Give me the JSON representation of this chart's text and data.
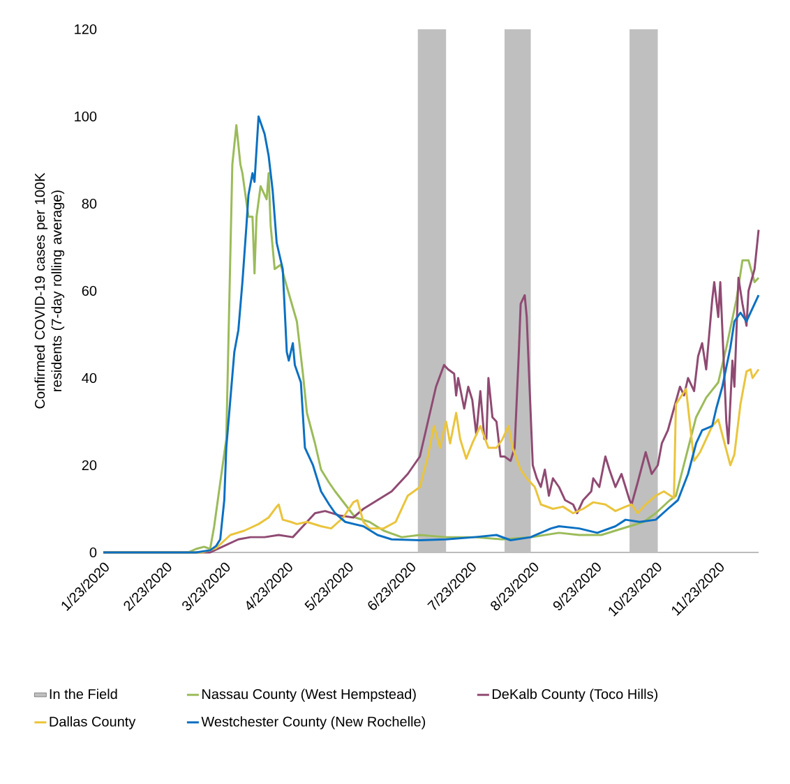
{
  "chart_data": {
    "type": "line",
    "ylabel": "Confirmed COVID-19 cases per 100K residents (7-day rolling average)",
    "xlim": [
      "2020-01-23",
      "2020-12-13"
    ],
    "xticks": [
      {
        "value": "2020-01-23",
        "label": "1/23/2020"
      },
      {
        "value": "2020-02-23",
        "label": "2/23/2020"
      },
      {
        "value": "2020-03-23",
        "label": "3/23/2020"
      },
      {
        "value": "2020-04-23",
        "label": "4/23/2020"
      },
      {
        "value": "2020-05-23",
        "label": "5/23/2020"
      },
      {
        "value": "2020-06-23",
        "label": "6/23/2020"
      },
      {
        "value": "2020-07-23",
        "label": "7/23/2020"
      },
      {
        "value": "2020-08-23",
        "label": "8/23/2020"
      },
      {
        "value": "2020-09-23",
        "label": "9/23/2020"
      },
      {
        "value": "2020-10-23",
        "label": "10/23/2020"
      },
      {
        "value": "2020-11-23",
        "label": "11/23/2020"
      }
    ],
    "ylim": [
      0,
      120
    ],
    "yticks": [
      0,
      20,
      40,
      60,
      80,
      100,
      120
    ],
    "legend": "bottom",
    "bands": [
      {
        "axis": "x",
        "from": "2020-06-27",
        "to": "2020-07-11",
        "label": "In the Field",
        "color": "#bfbfbf"
      },
      {
        "axis": "x",
        "from": "2020-08-09",
        "to": "2020-08-22",
        "color": "#bfbfbf"
      },
      {
        "axis": "x",
        "from": "2020-10-10",
        "to": "2020-10-24",
        "color": "#bfbfbf"
      }
    ],
    "series": [
      {
        "name": "Nassau County (West Hempstead)",
        "color": "#9bbb59",
        "x": [
          "2020-01-23",
          "2020-03-05",
          "2020-03-09",
          "2020-03-13",
          "2020-03-16",
          "2020-03-18",
          "2020-03-21",
          "2020-03-24",
          "2020-03-27",
          "2020-03-29",
          "2020-03-31",
          "2020-04-01",
          "2020-04-04",
          "2020-04-06",
          "2020-04-07",
          "2020-04-08",
          "2020-04-10",
          "2020-04-13",
          "2020-04-14",
          "2020-04-15",
          "2020-04-17",
          "2020-04-20",
          "2020-04-23",
          "2020-04-28",
          "2020-05-01",
          "2020-05-03",
          "2020-05-07",
          "2020-05-10",
          "2020-05-14",
          "2020-05-17",
          "2020-05-22",
          "2020-05-27",
          "2020-06-03",
          "2020-06-10",
          "2020-06-19",
          "2020-06-28",
          "2020-07-11",
          "2020-07-25",
          "2020-08-08",
          "2020-08-22",
          "2020-09-05",
          "2020-09-15",
          "2020-09-26",
          "2020-10-03",
          "2020-10-10",
          "2020-10-17",
          "2020-10-23",
          "2020-10-30",
          "2020-11-02",
          "2020-11-12",
          "2020-11-17",
          "2020-11-23",
          "2020-11-27",
          "2020-12-02",
          "2020-12-05",
          "2020-12-08",
          "2020-12-11",
          "2020-12-13"
        ],
        "values": [
          0,
          0,
          0.8,
          1.3,
          0.8,
          6,
          16,
          26,
          89,
          98,
          89,
          87,
          77,
          77,
          64,
          77,
          84,
          81,
          87,
          75,
          65,
          66,
          61,
          53,
          41,
          32,
          25,
          19,
          16,
          14,
          11,
          8,
          7,
          5,
          3.5,
          4,
          3.5,
          3.5,
          3,
          3.5,
          4.5,
          4,
          4,
          5,
          6,
          7,
          9,
          12,
          13,
          31,
          35.5,
          39,
          47,
          58,
          67,
          67,
          62,
          63
        ]
      },
      {
        "name": "DeKalb County (Toco Hills)",
        "color": "#8f4a72",
        "x": [
          "2020-01-23",
          "2020-03-16",
          "2020-03-23",
          "2020-03-30",
          "2020-04-05",
          "2020-04-12",
          "2020-04-19",
          "2020-04-26",
          "2020-05-01",
          "2020-05-07",
          "2020-05-12",
          "2020-05-19",
          "2020-05-26",
          "2020-05-31",
          "2020-06-07",
          "2020-06-14",
          "2020-06-22",
          "2020-06-28",
          "2020-07-02",
          "2020-07-06",
          "2020-07-10",
          "2020-07-12",
          "2020-07-15",
          "2020-07-16",
          "2020-07-17",
          "2020-07-20",
          "2020-07-22",
          "2020-07-24",
          "2020-07-26",
          "2020-07-28",
          "2020-07-30",
          "2020-07-31",
          "2020-08-01",
          "2020-08-03",
          "2020-08-05",
          "2020-08-07",
          "2020-08-09",
          "2020-08-12",
          "2020-08-14",
          "2020-08-16",
          "2020-08-17",
          "2020-08-19",
          "2020-08-20",
          "2020-08-23",
          "2020-08-25",
          "2020-08-27",
          "2020-08-29",
          "2020-08-31",
          "2020-09-02",
          "2020-09-05",
          "2020-09-08",
          "2020-09-12",
          "2020-09-14",
          "2020-09-17",
          "2020-09-21",
          "2020-09-22",
          "2020-09-25",
          "2020-09-28",
          "2020-09-30",
          "2020-10-03",
          "2020-10-06",
          "2020-10-10",
          "2020-10-11",
          "2020-10-14",
          "2020-10-18",
          "2020-10-21",
          "2020-10-24",
          "2020-10-26",
          "2020-10-29",
          "2020-11-01",
          "2020-11-04",
          "2020-11-06",
          "2020-11-08",
          "2020-11-11",
          "2020-11-13",
          "2020-11-15",
          "2020-11-17",
          "2020-11-20",
          "2020-11-21",
          "2020-11-23",
          "2020-11-24",
          "2020-11-27",
          "2020-11-28",
          "2020-11-30",
          "2020-12-01",
          "2020-12-03",
          "2020-12-05",
          "2020-12-07",
          "2020-12-08",
          "2020-12-11",
          "2020-12-13"
        ],
        "values": [
          0,
          0,
          1.5,
          3,
          3.5,
          3.5,
          4,
          3.5,
          6,
          9,
          9.5,
          8.5,
          8,
          10,
          12,
          14,
          18,
          22,
          30,
          38,
          43,
          42,
          41,
          36,
          40,
          33,
          38,
          35,
          27,
          37,
          26,
          26,
          40,
          31,
          30,
          22,
          22,
          21,
          24,
          45,
          57,
          59,
          54,
          20,
          17,
          15,
          19,
          13,
          17,
          15,
          12,
          11,
          9,
          12,
          14,
          17,
          15,
          22,
          19,
          15,
          18,
          12,
          11,
          16,
          23,
          18,
          20,
          25,
          28,
          33,
          38,
          36,
          40,
          37,
          45,
          48,
          42,
          58,
          62,
          54,
          62,
          30,
          25,
          44,
          38,
          63,
          57,
          52,
          60,
          65,
          74
        ]
      },
      {
        "name": "Dallas County",
        "color": "#eac43c",
        "x": [
          "2020-01-23",
          "2020-03-12",
          "2020-03-19",
          "2020-03-26",
          "2020-04-02",
          "2020-04-09",
          "2020-04-14",
          "2020-04-18",
          "2020-04-19",
          "2020-04-21",
          "2020-04-25",
          "2020-04-28",
          "2020-05-03",
          "2020-05-10",
          "2020-05-15",
          "2020-05-21",
          "2020-05-26",
          "2020-05-28",
          "2020-05-31",
          "2020-06-03",
          "2020-06-10",
          "2020-06-16",
          "2020-06-22",
          "2020-06-28",
          "2020-07-02",
          "2020-07-05",
          "2020-07-08",
          "2020-07-11",
          "2020-07-13",
          "2020-07-16",
          "2020-07-18",
          "2020-07-21",
          "2020-07-24",
          "2020-07-28",
          "2020-08-01",
          "2020-08-05",
          "2020-08-08",
          "2020-08-11",
          "2020-08-13",
          "2020-08-17",
          "2020-08-20",
          "2020-08-24",
          "2020-08-27",
          "2020-09-02",
          "2020-09-07",
          "2020-09-12",
          "2020-09-17",
          "2020-09-22",
          "2020-09-28",
          "2020-10-03",
          "2020-10-08",
          "2020-10-11",
          "2020-10-14",
          "2020-10-18",
          "2020-10-23",
          "2020-10-27",
          "2020-11-01",
          "2020-11-02",
          "2020-11-07",
          "2020-11-11",
          "2020-11-14",
          "2020-11-20",
          "2020-11-23",
          "2020-11-25",
          "2020-11-29",
          "2020-12-01",
          "2020-12-04",
          "2020-12-07",
          "2020-12-09",
          "2020-12-10",
          "2020-12-13"
        ],
        "values": [
          0,
          0,
          1,
          4,
          5,
          6.5,
          8,
          10.5,
          11,
          7.5,
          7,
          6.5,
          7,
          6,
          5.5,
          8,
          11.5,
          12,
          7,
          5.5,
          5.5,
          7,
          13,
          15,
          22,
          29,
          24,
          30,
          25,
          32,
          26,
          21.5,
          25,
          29,
          24,
          24,
          26,
          29,
          24,
          19,
          17,
          15,
          11,
          10,
          10.5,
          9,
          10,
          11.5,
          11,
          9.5,
          10.5,
          11,
          9,
          11,
          13,
          14,
          12.5,
          34,
          37.5,
          21,
          23,
          29,
          30.5,
          27,
          20,
          22.5,
          34,
          41.5,
          42,
          40,
          42
        ]
      },
      {
        "name": "Westchester County (New Rochelle)",
        "color": "#0a70c2",
        "x": [
          "2020-01-23",
          "2020-03-09",
          "2020-03-16",
          "2020-03-19",
          "2020-03-21",
          "2020-03-23",
          "2020-03-24",
          "2020-03-26",
          "2020-03-28",
          "2020-03-30",
          "2020-04-01",
          "2020-04-03",
          "2020-04-04",
          "2020-04-06",
          "2020-04-07",
          "2020-04-09",
          "2020-04-12",
          "2020-04-14",
          "2020-04-16",
          "2020-04-18",
          "2020-04-21",
          "2020-04-23",
          "2020-04-24",
          "2020-04-26",
          "2020-04-27",
          "2020-04-30",
          "2020-05-02",
          "2020-05-06",
          "2020-05-10",
          "2020-05-14",
          "2020-05-17",
          "2020-05-22",
          "2020-05-31",
          "2020-06-07",
          "2020-06-14",
          "2020-06-28",
          "2020-07-11",
          "2020-07-25",
          "2020-08-05",
          "2020-08-12",
          "2020-08-22",
          "2020-09-01",
          "2020-09-05",
          "2020-09-15",
          "2020-09-24",
          "2020-10-03",
          "2020-10-08",
          "2020-10-15",
          "2020-10-23",
          "2020-10-29",
          "2020-11-03",
          "2020-11-08",
          "2020-11-12",
          "2020-11-15",
          "2020-11-20",
          "2020-11-22",
          "2020-11-25",
          "2020-11-29",
          "2020-12-01",
          "2020-12-04",
          "2020-12-07",
          "2020-12-10",
          "2020-12-13"
        ],
        "values": [
          0,
          0,
          0.5,
          1.5,
          3,
          12,
          24,
          35,
          46,
          51,
          62,
          75,
          82,
          87,
          85,
          100,
          96,
          91,
          83,
          71,
          65,
          46,
          44,
          48,
          43,
          39,
          24,
          20,
          14,
          11,
          9,
          7,
          6,
          4,
          3,
          2.8,
          3,
          3.5,
          4,
          2.8,
          3.5,
          5.5,
          6,
          5.5,
          4.5,
          6,
          7.5,
          7,
          7.5,
          10,
          12,
          18,
          25,
          28,
          29,
          33,
          38,
          47,
          53,
          55,
          53,
          56,
          59
        ]
      }
    ]
  }
}
